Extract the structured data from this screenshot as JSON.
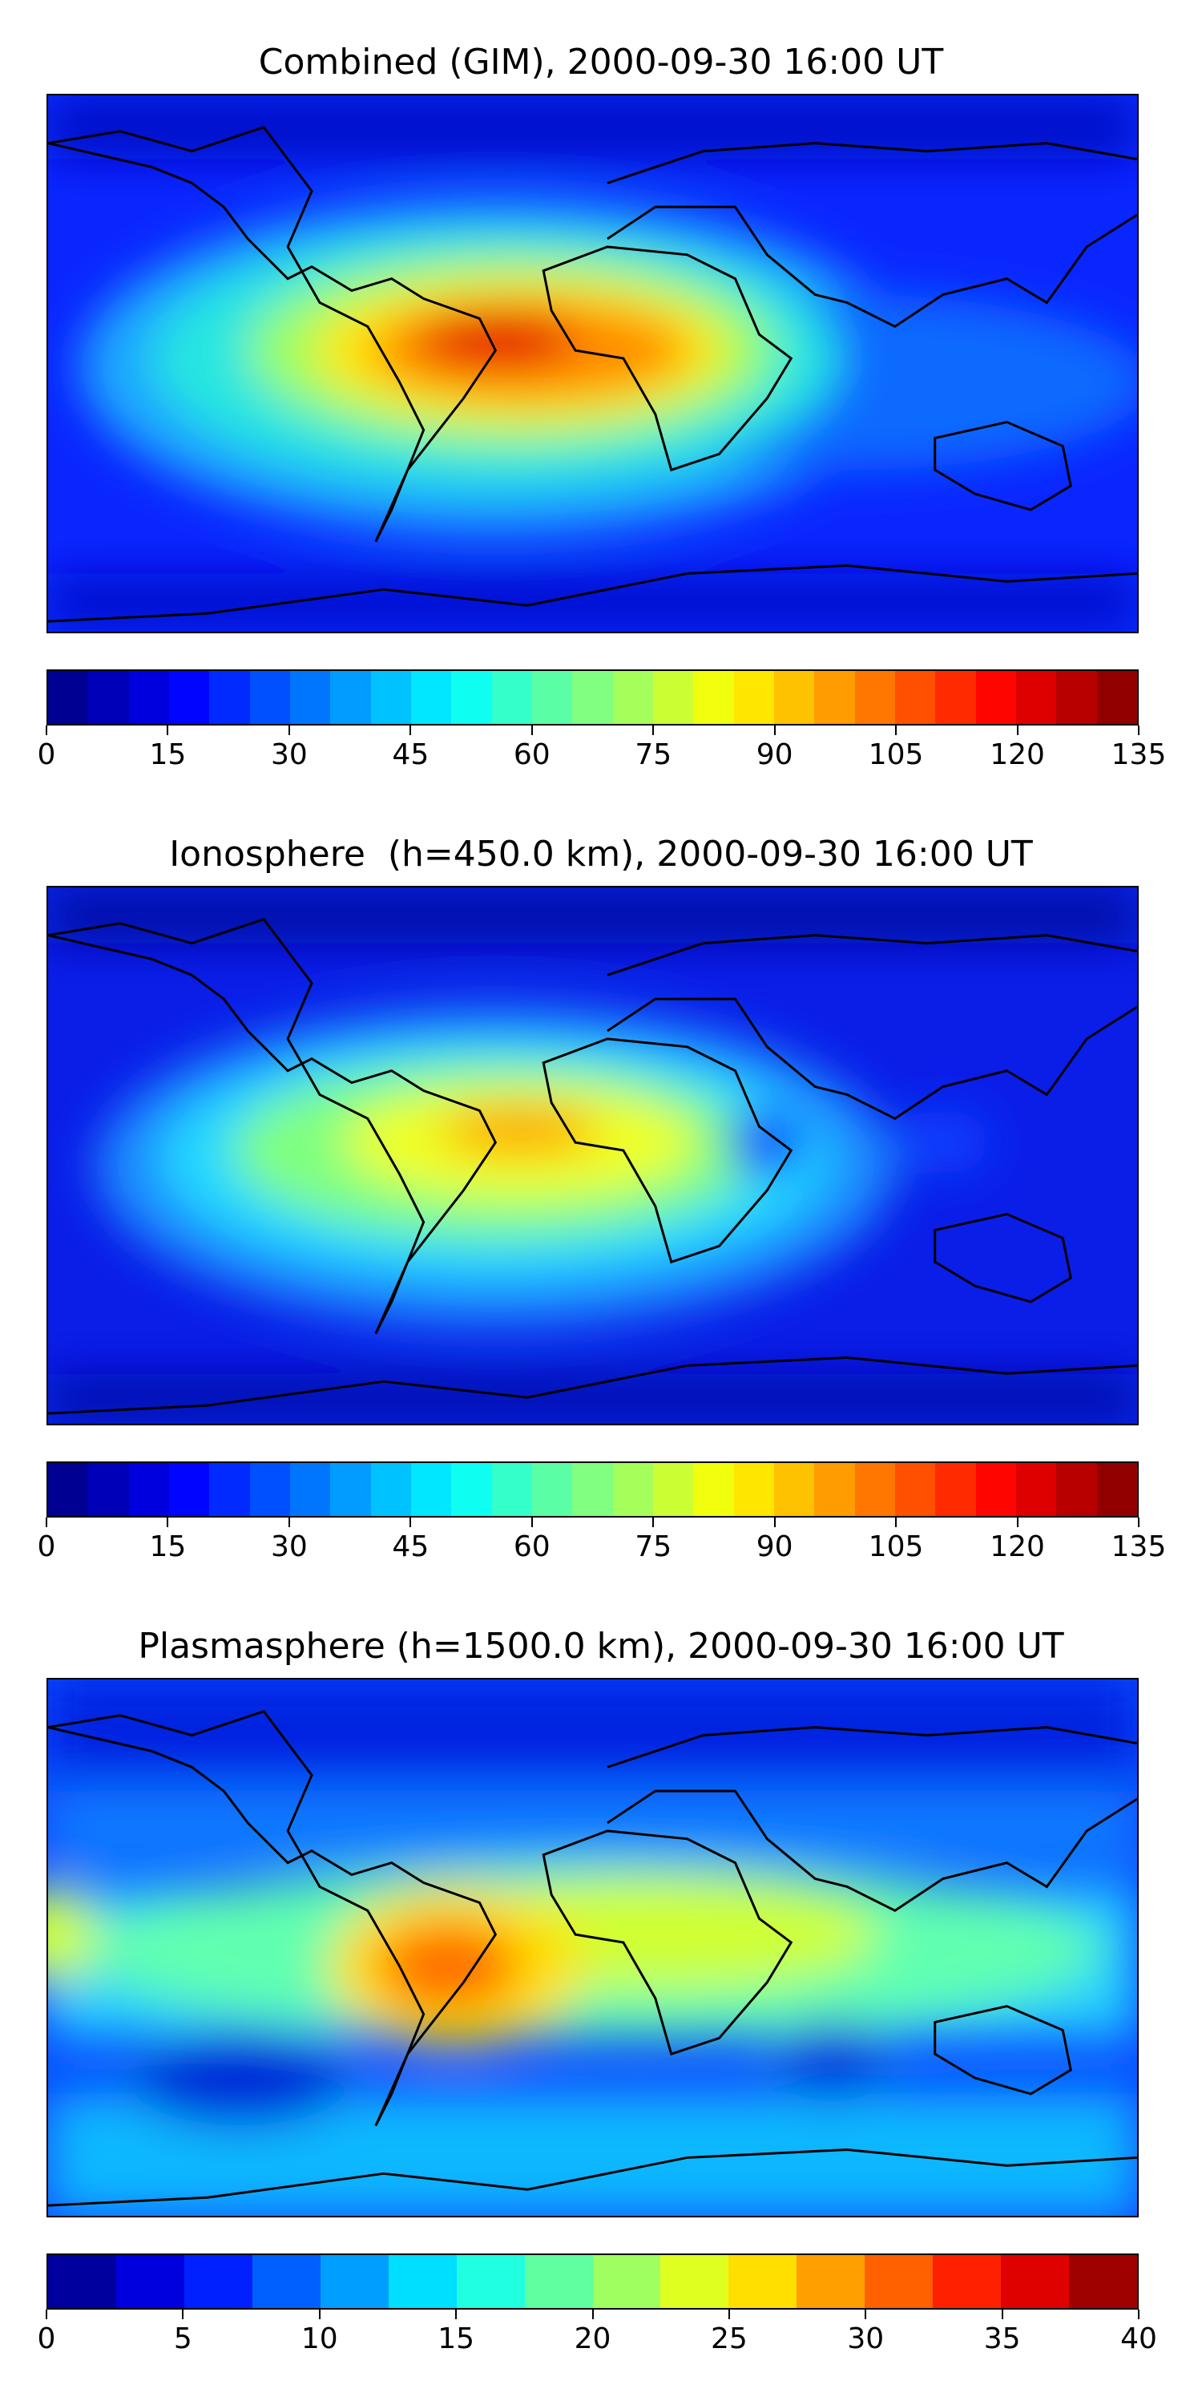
{
  "panels": [
    {
      "title": "Combined (GIM), 2000-09-30 16:00 UT",
      "colorbar": {
        "min": 0,
        "max": 135,
        "levels": 27,
        "tick_labels": [
          "0",
          "15",
          "30",
          "45",
          "60",
          "75",
          "90",
          "105",
          "120",
          "135"
        ]
      }
    },
    {
      "title": "Ionosphere  (h=450.0 km), 2000-09-30 16:00 UT",
      "colorbar": {
        "min": 0,
        "max": 135,
        "levels": 27,
        "tick_labels": [
          "0",
          "15",
          "30",
          "45",
          "60",
          "75",
          "90",
          "105",
          "120",
          "135"
        ]
      }
    },
    {
      "title": "Plasmasphere (h=1500.0 km), 2000-09-30 16:00 UT",
      "colorbar": {
        "min": 0,
        "max": 40,
        "levels": 16,
        "tick_labels": [
          "0",
          "5",
          "10",
          "15",
          "20",
          "25",
          "30",
          "35",
          "40"
        ]
      }
    }
  ],
  "colormap": "jet",
  "colors": {
    "coastline": "#000000",
    "background": "#ffffff"
  }
}
